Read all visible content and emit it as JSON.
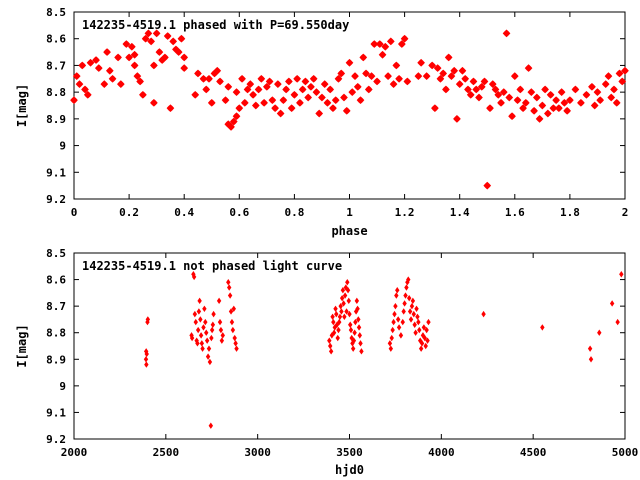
{
  "chart_data": [
    {
      "type": "scatter",
      "title": "142235-4519.1 phased with P=69.550day",
      "xlabel": "phase",
      "ylabel": "I[mag]",
      "xlim": [
        0,
        2
      ],
      "ylim": [
        8.5,
        9.2
      ],
      "y_inverted": true,
      "grid": false,
      "legend": "top-left",
      "marker_color": "#ff0000",
      "xticks": [
        "0",
        "0.2",
        "0.4",
        "0.6",
        "0.8",
        "1",
        "1.2",
        "1.4",
        "1.6",
        "1.8",
        "2"
      ],
      "yticks": [
        "8.5",
        "8.6",
        "8.7",
        "8.8",
        "8.9",
        "9",
        "9.1",
        "9.2"
      ],
      "points": [
        [
          0.0,
          8.83
        ],
        [
          0.01,
          8.74
        ],
        [
          0.02,
          8.77
        ],
        [
          0.03,
          8.7
        ],
        [
          0.04,
          8.79
        ],
        [
          0.05,
          8.81
        ],
        [
          0.06,
          8.69
        ],
        [
          0.08,
          8.68
        ],
        [
          0.09,
          8.71
        ],
        [
          0.11,
          8.77
        ],
        [
          0.13,
          8.72
        ],
        [
          0.12,
          8.65
        ],
        [
          0.14,
          8.75
        ],
        [
          0.16,
          8.67
        ],
        [
          0.17,
          8.77
        ],
        [
          0.19,
          8.62
        ],
        [
          0.2,
          8.67
        ],
        [
          0.21,
          8.63
        ],
        [
          0.22,
          8.66
        ],
        [
          0.22,
          8.7
        ],
        [
          0.23,
          8.74
        ],
        [
          0.24,
          8.76
        ],
        [
          0.25,
          8.81
        ],
        [
          0.26,
          8.6
        ],
        [
          0.27,
          8.58
        ],
        [
          0.28,
          8.61
        ],
        [
          0.29,
          8.7
        ],
        [
          0.29,
          8.84
        ],
        [
          0.3,
          8.58
        ],
        [
          0.31,
          8.65
        ],
        [
          0.32,
          8.68
        ],
        [
          0.33,
          8.67
        ],
        [
          0.34,
          8.59
        ],
        [
          0.35,
          8.86
        ],
        [
          0.36,
          8.61
        ],
        [
          0.37,
          8.64
        ],
        [
          0.38,
          8.65
        ],
        [
          0.39,
          8.6
        ],
        [
          0.4,
          8.67
        ],
        [
          0.4,
          8.71
        ],
        [
          0.44,
          8.81
        ],
        [
          0.45,
          8.73
        ],
        [
          0.47,
          8.75
        ],
        [
          0.48,
          8.79
        ],
        [
          0.49,
          8.75
        ],
        [
          0.5,
          8.84
        ],
        [
          0.51,
          8.73
        ],
        [
          0.52,
          8.72
        ],
        [
          0.53,
          8.76
        ],
        [
          0.55,
          8.83
        ],
        [
          0.56,
          8.78
        ],
        [
          0.56,
          8.92
        ],
        [
          0.57,
          8.93
        ],
        [
          0.58,
          8.91
        ],
        [
          0.59,
          8.8
        ],
        [
          0.59,
          8.89
        ],
        [
          0.6,
          8.86
        ],
        [
          0.61,
          8.75
        ],
        [
          0.62,
          8.84
        ],
        [
          0.63,
          8.79
        ],
        [
          0.64,
          8.77
        ],
        [
          0.65,
          8.81
        ],
        [
          0.66,
          8.85
        ],
        [
          0.67,
          8.79
        ],
        [
          0.68,
          8.75
        ],
        [
          0.69,
          8.84
        ],
        [
          0.7,
          8.78
        ],
        [
          0.71,
          8.76
        ],
        [
          0.72,
          8.83
        ],
        [
          0.73,
          8.86
        ],
        [
          0.74,
          8.77
        ],
        [
          0.75,
          8.88
        ],
        [
          0.76,
          8.83
        ],
        [
          0.77,
          8.79
        ],
        [
          0.78,
          8.76
        ],
        [
          0.79,
          8.86
        ],
        [
          0.8,
          8.81
        ],
        [
          0.81,
          8.75
        ],
        [
          0.82,
          8.84
        ],
        [
          0.83,
          8.79
        ],
        [
          0.84,
          8.76
        ],
        [
          0.85,
          8.82
        ],
        [
          0.86,
          8.78
        ],
        [
          0.87,
          8.75
        ],
        [
          0.88,
          8.8
        ],
        [
          0.89,
          8.88
        ],
        [
          0.9,
          8.82
        ],
        [
          0.91,
          8.77
        ],
        [
          0.92,
          8.84
        ],
        [
          0.93,
          8.79
        ],
        [
          0.94,
          8.86
        ],
        [
          0.95,
          8.83
        ],
        [
          0.96,
          8.75
        ],
        [
          0.97,
          8.73
        ],
        [
          0.98,
          8.82
        ],
        [
          0.99,
          8.87
        ],
        [
          1.0,
          8.69
        ],
        [
          1.01,
          8.8
        ],
        [
          1.02,
          8.74
        ],
        [
          1.03,
          8.78
        ],
        [
          1.04,
          8.83
        ],
        [
          1.05,
          8.67
        ],
        [
          1.06,
          8.73
        ],
        [
          1.07,
          8.79
        ],
        [
          1.08,
          8.74
        ],
        [
          1.09,
          8.62
        ],
        [
          1.1,
          8.76
        ],
        [
          1.11,
          8.62
        ],
        [
          1.12,
          8.66
        ],
        [
          1.13,
          8.63
        ],
        [
          1.14,
          8.74
        ],
        [
          1.15,
          8.61
        ],
        [
          1.16,
          8.77
        ],
        [
          1.17,
          8.7
        ],
        [
          1.18,
          8.75
        ],
        [
          1.19,
          8.62
        ],
        [
          1.2,
          8.6
        ],
        [
          1.21,
          8.76
        ],
        [
          1.25,
          8.74
        ],
        [
          1.26,
          8.69
        ],
        [
          1.28,
          8.74
        ],
        [
          1.3,
          8.7
        ],
        [
          1.31,
          8.86
        ],
        [
          1.32,
          8.71
        ],
        [
          1.33,
          8.75
        ],
        [
          1.34,
          8.73
        ],
        [
          1.35,
          8.79
        ],
        [
          1.36,
          8.67
        ],
        [
          1.37,
          8.74
        ],
        [
          1.38,
          8.72
        ],
        [
          1.39,
          8.9
        ],
        [
          1.4,
          8.77
        ],
        [
          1.41,
          8.72
        ],
        [
          1.42,
          8.75
        ],
        [
          1.43,
          8.79
        ],
        [
          1.44,
          8.81
        ],
        [
          1.45,
          8.76
        ],
        [
          1.46,
          8.79
        ],
        [
          1.47,
          8.82
        ],
        [
          1.48,
          8.78
        ],
        [
          1.49,
          8.76
        ],
        [
          1.5,
          9.15
        ],
        [
          1.51,
          8.86
        ],
        [
          1.52,
          8.77
        ],
        [
          1.53,
          8.79
        ],
        [
          1.54,
          8.81
        ],
        [
          1.55,
          8.84
        ],
        [
          1.56,
          8.8
        ],
        [
          1.57,
          8.58
        ],
        [
          1.58,
          8.82
        ],
        [
          1.59,
          8.89
        ],
        [
          1.6,
          8.74
        ],
        [
          1.61,
          8.83
        ],
        [
          1.62,
          8.79
        ],
        [
          1.63,
          8.86
        ],
        [
          1.64,
          8.84
        ],
        [
          1.65,
          8.71
        ],
        [
          1.66,
          8.8
        ],
        [
          1.67,
          8.87
        ],
        [
          1.68,
          8.82
        ],
        [
          1.69,
          8.9
        ],
        [
          1.7,
          8.85
        ],
        [
          1.71,
          8.79
        ],
        [
          1.72,
          8.88
        ],
        [
          1.73,
          8.81
        ],
        [
          1.74,
          8.86
        ],
        [
          1.75,
          8.83
        ],
        [
          1.76,
          8.86
        ],
        [
          1.77,
          8.8
        ],
        [
          1.78,
          8.84
        ],
        [
          1.79,
          8.87
        ],
        [
          1.8,
          8.83
        ],
        [
          1.82,
          8.79
        ],
        [
          1.84,
          8.84
        ],
        [
          1.86,
          8.81
        ],
        [
          1.88,
          8.78
        ],
        [
          1.89,
          8.85
        ],
        [
          1.9,
          8.8
        ],
        [
          1.91,
          8.83
        ],
        [
          1.93,
          8.77
        ],
        [
          1.94,
          8.74
        ],
        [
          1.95,
          8.82
        ],
        [
          1.96,
          8.79
        ],
        [
          1.97,
          8.84
        ],
        [
          1.98,
          8.73
        ],
        [
          1.99,
          8.76
        ],
        [
          2.0,
          8.72
        ]
      ]
    },
    {
      "type": "scatter",
      "title": "142235-4519.1 not phased light curve",
      "xlabel": "hjd0",
      "ylabel": "I[mag]",
      "xlim": [
        2000,
        5000
      ],
      "ylim": [
        8.5,
        9.2
      ],
      "y_inverted": true,
      "grid": false,
      "legend": "top-left",
      "marker_color": "#ff0000",
      "xticks": [
        "2000",
        "2500",
        "3000",
        "3500",
        "4000",
        "4500",
        "5000"
      ],
      "yticks": [
        "8.5",
        "8.6",
        "8.7",
        "8.8",
        "8.9",
        "9",
        "9.1",
        "9.2"
      ],
      "points": [
        [
          2392,
          8.9
        ],
        [
          2393,
          8.87
        ],
        [
          2394,
          8.92
        ],
        [
          2396,
          8.88
        ],
        [
          2400,
          8.76
        ],
        [
          2402,
          8.75
        ],
        [
          2640,
          8.81
        ],
        [
          2643,
          8.82
        ],
        [
          2650,
          8.58
        ],
        [
          2654,
          8.59
        ],
        [
          2658,
          8.73
        ],
        [
          2663,
          8.76
        ],
        [
          2668,
          8.83
        ],
        [
          2672,
          8.84
        ],
        [
          2676,
          8.79
        ],
        [
          2680,
          8.72
        ],
        [
          2684,
          8.68
        ],
        [
          2688,
          8.75
        ],
        [
          2692,
          8.81
        ],
        [
          2696,
          8.84
        ],
        [
          2700,
          8.86
        ],
        [
          2705,
          8.78
        ],
        [
          2710,
          8.71
        ],
        [
          2715,
          8.76
        ],
        [
          2720,
          8.8
        ],
        [
          2725,
          8.83
        ],
        [
          2730,
          8.89
        ],
        [
          2735,
          8.86
        ],
        [
          2740,
          8.91
        ],
        [
          2745,
          9.15
        ],
        [
          2748,
          8.82
        ],
        [
          2752,
          8.79
        ],
        [
          2756,
          8.77
        ],
        [
          2760,
          8.73
        ],
        [
          2790,
          8.68
        ],
        [
          2795,
          8.76
        ],
        [
          2800,
          8.79
        ],
        [
          2805,
          8.83
        ],
        [
          2810,
          8.81
        ],
        [
          2840,
          8.61
        ],
        [
          2845,
          8.63
        ],
        [
          2850,
          8.66
        ],
        [
          2855,
          8.72
        ],
        [
          2860,
          8.76
        ],
        [
          2865,
          8.79
        ],
        [
          2870,
          8.71
        ],
        [
          2875,
          8.82
        ],
        [
          2880,
          8.84
        ],
        [
          2885,
          8.86
        ],
        [
          3390,
          8.83
        ],
        [
          3395,
          8.85
        ],
        [
          3400,
          8.87
        ],
        [
          3404,
          8.81
        ],
        [
          3408,
          8.74
        ],
        [
          3412,
          8.76
        ],
        [
          3416,
          8.8
        ],
        [
          3420,
          8.78
        ],
        [
          3424,
          8.71
        ],
        [
          3428,
          8.73
        ],
        [
          3432,
          8.77
        ],
        [
          3436,
          8.82
        ],
        [
          3440,
          8.79
        ],
        [
          3444,
          8.76
        ],
        [
          3448,
          8.74
        ],
        [
          3452,
          8.7
        ],
        [
          3456,
          8.72
        ],
        [
          3460,
          8.67
        ],
        [
          3464,
          8.64
        ],
        [
          3468,
          8.69
        ],
        [
          3472,
          8.74
        ],
        [
          3476,
          8.66
        ],
        [
          3480,
          8.63
        ],
        [
          3484,
          8.72
        ],
        [
          3488,
          8.61
        ],
        [
          3492,
          8.64
        ],
        [
          3496,
          8.68
        ],
        [
          3500,
          8.73
        ],
        [
          3504,
          8.77
        ],
        [
          3508,
          8.79
        ],
        [
          3512,
          8.82
        ],
        [
          3516,
          8.84
        ],
        [
          3520,
          8.86
        ],
        [
          3524,
          8.83
        ],
        [
          3528,
          8.8
        ],
        [
          3532,
          8.76
        ],
        [
          3536,
          8.72
        ],
        [
          3540,
          8.68
        ],
        [
          3544,
          8.71
        ],
        [
          3548,
          8.75
        ],
        [
          3552,
          8.78
        ],
        [
          3556,
          8.81
        ],
        [
          3560,
          8.84
        ],
        [
          3565,
          8.87
        ],
        [
          3720,
          8.84
        ],
        [
          3725,
          8.86
        ],
        [
          3730,
          8.82
        ],
        [
          3735,
          8.79
        ],
        [
          3740,
          8.76
        ],
        [
          3745,
          8.73
        ],
        [
          3750,
          8.7
        ],
        [
          3755,
          8.66
        ],
        [
          3760,
          8.64
        ],
        [
          3765,
          8.75
        ],
        [
          3770,
          8.78
        ],
        [
          3780,
          8.81
        ],
        [
          3790,
          8.76
        ],
        [
          3795,
          8.72
        ],
        [
          3800,
          8.69
        ],
        [
          3805,
          8.66
        ],
        [
          3810,
          8.63
        ],
        [
          3815,
          8.61
        ],
        [
          3820,
          8.6
        ],
        [
          3825,
          8.67
        ],
        [
          3830,
          8.72
        ],
        [
          3835,
          8.75
        ],
        [
          3840,
          8.7
        ],
        [
          3845,
          8.68
        ],
        [
          3850,
          8.73
        ],
        [
          3855,
          8.77
        ],
        [
          3860,
          8.8
        ],
        [
          3865,
          8.71
        ],
        [
          3870,
          8.74
        ],
        [
          3875,
          8.76
        ],
        [
          3880,
          8.79
        ],
        [
          3885,
          8.83
        ],
        [
          3890,
          8.86
        ],
        [
          3895,
          8.84
        ],
        [
          3900,
          8.81
        ],
        [
          3905,
          8.78
        ],
        [
          3910,
          8.82
        ],
        [
          3915,
          8.85
        ],
        [
          3920,
          8.79
        ],
        [
          3925,
          8.83
        ],
        [
          3930,
          8.76
        ],
        [
          4230,
          8.73
        ],
        [
          4550,
          8.78
        ],
        [
          4810,
          8.86
        ],
        [
          4815,
          8.9
        ],
        [
          4860,
          8.8
        ],
        [
          4930,
          8.69
        ],
        [
          4960,
          8.76
        ],
        [
          4980,
          8.58
        ]
      ]
    }
  ]
}
